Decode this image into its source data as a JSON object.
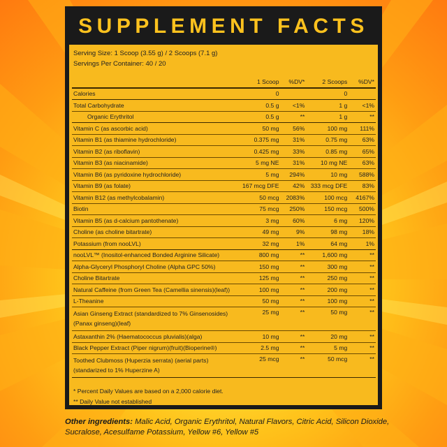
{
  "title": "SUPPLEMENT FACTS",
  "serving_size": "Serving Size: 1 Scoop (3.55 g) / 2 Scoops (7.1 g)",
  "servings_per_container": "Servings Per Container: 40 / 20",
  "headers": {
    "scoop1": "1 Scoop",
    "dv1": "%DV*",
    "scoop2": "2 Scoops",
    "dv2": "%DV*"
  },
  "rows": [
    {
      "name": "Calories",
      "v1": "0",
      "d1": "",
      "v2": "0",
      "d2": ""
    },
    {
      "name": "Total Carbohydrate",
      "v1": "0.5 g",
      "d1": "<1%",
      "v2": "1 g",
      "d2": "<1%"
    },
    {
      "name": "Organic Erythritol",
      "v1": "0.5 g",
      "d1": "**",
      "v2": "1 g",
      "d2": "**"
    },
    {
      "name": "Vitamin C (as ascorbic acid)",
      "v1": "50 mg",
      "d1": "56%",
      "v2": "100 mg",
      "d2": "111%"
    },
    {
      "name": "Vitamin B1 (as thiamine hydrochloride)",
      "v1": "0.375 mg",
      "d1": "31%",
      "v2": "0.75 mg",
      "d2": "63%"
    },
    {
      "name": "Vitamin B2 (as riboflavin)",
      "v1": "0.425 mg",
      "d1": "33%",
      "v2": "0.85 mg",
      "d2": "65%"
    },
    {
      "name": "Vitamin B3 (as niacinamide)",
      "v1": "5 mg NE",
      "d1": "31%",
      "v2": "10 mg NE",
      "d2": "63%"
    },
    {
      "name": "Vitamin B6 (as pyridoxine hydrochloride)",
      "v1": "5 mg",
      "d1": "294%",
      "v2": "10 mg",
      "d2": "588%"
    },
    {
      "name": "Vitamin B9 (as folate)",
      "v1": "167 mcg DFE",
      "d1": "42%",
      "v2": "333 mcg DFE",
      "d2": "83%"
    },
    {
      "name": "Vitamin B12 (as methylcobalamin)",
      "v1": "50 mcg",
      "d1": "2083%",
      "v2": "100 mcg",
      "d2": "4167%"
    },
    {
      "name": "Biotin",
      "v1": "75 mcg",
      "d1": "250%",
      "v2": "150 mcg",
      "d2": "500%"
    },
    {
      "name": "Vitamin B5 (as d-calcium pantothenate)",
      "v1": "3 mg",
      "d1": "60%",
      "v2": "6 mg",
      "d2": "120%"
    },
    {
      "name": "Choline (as choline bitartrate)",
      "v1": "49 mg",
      "d1": "9%",
      "v2": "98 mg",
      "d2": "18%"
    },
    {
      "name": "Potassium (from nooLVL)",
      "v1": "32 mg",
      "d1": "1%",
      "v2": "64 mg",
      "d2": "1%"
    },
    {
      "name": "nooLVL™ (Inositol-enhanced Bonded Arginine Silicate)",
      "v1": "800 mg",
      "d1": "**",
      "v2": "1,600 mg",
      "d2": "**"
    },
    {
      "name": "Alpha-Glyceryl Phosphoryl Choline (Alpha GPC 50%)",
      "v1": "150 mg",
      "d1": "**",
      "v2": "300 mg",
      "d2": "**"
    },
    {
      "name": "Choline Bitartrate",
      "v1": "125 mg",
      "d1": "**",
      "v2": "250 mg",
      "d2": "**"
    },
    {
      "name": "Natural Caffeine (from Green Tea (Camellia sinensis)(leaf))",
      "v1": "100 mg",
      "d1": "**",
      "v2": "200 mg",
      "d2": "**"
    },
    {
      "name": "L-Theanine",
      "v1": "50 mg",
      "d1": "**",
      "v2": "100 mg",
      "d2": "**"
    },
    {
      "name": "Asian Ginseng Extract (standardized to 7% Ginsenosides) (Panax ginseng)(leaf)",
      "v1": "25 mg",
      "d1": "**",
      "v2": "50 mg",
      "d2": "**"
    },
    {
      "name": "Astaxanthin 2% (Haematococcus pluvialis)(alga)",
      "v1": "10 mg",
      "d1": "**",
      "v2": "20 mg",
      "d2": "**"
    },
    {
      "name": "Black Pepper Extract (Piper nigrum)(fruit)(Bioperine®)",
      "v1": "2.5 mg",
      "d1": "**",
      "v2": "5 mg",
      "d2": "**"
    },
    {
      "name": "Toothed Clubmoss (Huperzia serrata) (aerial parts) (standarized to 1% Huperzine A)",
      "v1": "25 mcg",
      "d1": "**",
      "v2": "50 mcg",
      "d2": "**"
    }
  ],
  "footnote1": "* Percent Daily Values are based on a 2,000 calorie diet.",
  "footnote2": "** Daily Value not established",
  "other_label": "Other ingredients:",
  "other_text": " Malic Acid, Organic Erythritol, Natural Flavors, Citric Acid, Silicon Dioxide, Sucralose, Acesulfame Potassium, Yellow #6, Yellow #5"
}
